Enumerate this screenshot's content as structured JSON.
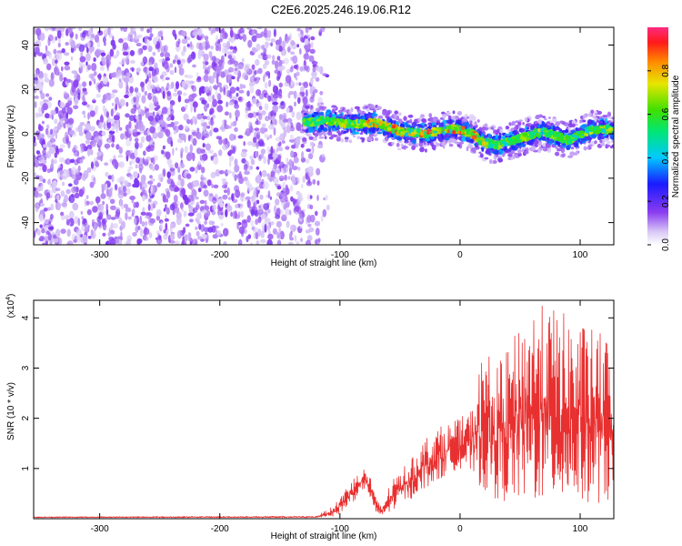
{
  "title": "C2E6.2025.246.19.06.R12",
  "colors": {
    "snr_line": "#e83030",
    "scatter_base": "#7a32e6",
    "frame": "#000000"
  },
  "chart_data": [
    {
      "type": "heatmap",
      "name": "spectrogram",
      "title": "C2E6.2025.246.19.06.R12",
      "xlabel": "Height of straight line (km)",
      "ylabel": "Frequency (Hz)",
      "xlim": [
        -355,
        128
      ],
      "ylim": [
        -50,
        48
      ],
      "x_ticks": [
        -300,
        -200,
        -100,
        0,
        100
      ],
      "y_ticks": [
        -40,
        -20,
        0,
        20,
        40
      ],
      "noise_region_x": [
        -355,
        -130
      ],
      "signal_track": {
        "x": [
          -130,
          -110,
          -90,
          -70,
          -50,
          -30,
          -10,
          0,
          10,
          20,
          30,
          50,
          70,
          90,
          110,
          128
        ],
        "freq": [
          5,
          6,
          4,
          5,
          1,
          0,
          2,
          2,
          0,
          -4,
          -5,
          -2,
          1,
          -3,
          2,
          2
        ]
      },
      "colorbar": {
        "label": "Normalized spectral amplitude",
        "range": [
          0.0,
          1.0
        ],
        "ticks": [
          0.0,
          0.2,
          0.4,
          0.6,
          0.8
        ]
      }
    },
    {
      "type": "line",
      "name": "snr",
      "xlabel": "Height of straight line (km)",
      "ylabel": "SNR (10 * v/v)",
      "exponent_label": "(x10",
      "exponent_power": "4",
      "exponent_close": ")",
      "xlim": [
        -355,
        128
      ],
      "ylim": [
        0,
        4.35
      ],
      "x_ticks": [
        -300,
        -200,
        -100,
        0,
        100
      ],
      "y_ticks": [
        1,
        2,
        3,
        4
      ],
      "envelope": {
        "x": [
          -355,
          -120,
          -105,
          -100,
          -90,
          -80,
          -75,
          -70,
          -65,
          -60,
          -50,
          -40,
          -30,
          -20,
          -10,
          0,
          10,
          20,
          30,
          40,
          60,
          80,
          100,
          128
        ],
        "low": [
          0.02,
          0.02,
          0.05,
          0.1,
          0.3,
          0.6,
          0.4,
          0.1,
          0.05,
          0.1,
          0.3,
          0.4,
          0.6,
          0.7,
          0.9,
          1.0,
          0.9,
          0.5,
          0.4,
          0.3,
          0.3,
          0.3,
          0.3,
          0.3
        ],
        "high": [
          0.04,
          0.05,
          0.25,
          0.45,
          0.8,
          1.0,
          0.9,
          0.4,
          0.25,
          0.6,
          1.0,
          1.2,
          1.6,
          1.8,
          1.9,
          2.0,
          2.2,
          3.5,
          3.0,
          3.4,
          4.3,
          4.2,
          3.9,
          3.6
        ]
      }
    }
  ]
}
